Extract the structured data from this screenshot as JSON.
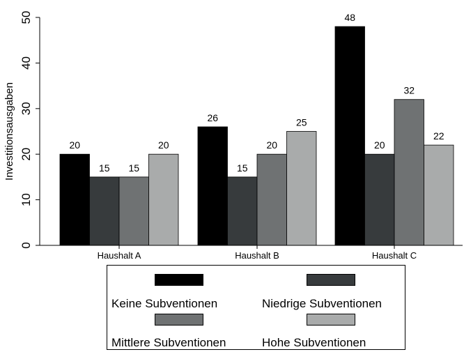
{
  "chart_data": {
    "type": "bar",
    "title": "",
    "xlabel": "",
    "ylabel": "Investitionsausgaben",
    "ylim": [
      0,
      50
    ],
    "yticks": [
      0,
      10,
      20,
      30,
      40,
      50
    ],
    "grid": false,
    "legend_position": "bottom",
    "categories": [
      "Haushalt A",
      "Haushalt B",
      "Haushalt C"
    ],
    "series": [
      {
        "name": "Keine Subventionen",
        "color": "#000000",
        "values": [
          20,
          26,
          48
        ]
      },
      {
        "name": "Niedrige Subventionen",
        "color": "#373b3d",
        "values": [
          15,
          15,
          20
        ]
      },
      {
        "name": "Mittlere Subventionen",
        "color": "#6f7273",
        "values": [
          15,
          20,
          32
        ]
      },
      {
        "name": "Hohe Subventionen",
        "color": "#a9abab",
        "values": [
          20,
          25,
          22
        ]
      }
    ]
  }
}
